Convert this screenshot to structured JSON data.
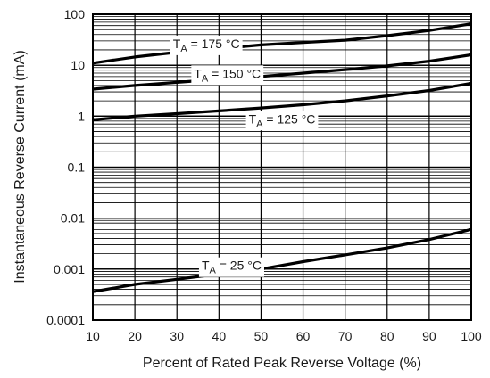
{
  "chart_data": {
    "type": "line",
    "title": "",
    "xlabel": "Percent of Rated Peak Reverse Voltage (%)",
    "ylabel": "Instantaneous Reverse Current (mA)",
    "xlim": [
      10,
      100
    ],
    "ylim": [
      0.0001,
      100
    ],
    "yscale": "log",
    "grid": true,
    "x_ticks": [
      10,
      20,
      30,
      40,
      50,
      60,
      70,
      80,
      90,
      100
    ],
    "x_tick_labels": [
      "10",
      "20",
      "30",
      "40",
      "50",
      "60",
      "70",
      "80",
      "90",
      "100"
    ],
    "y_ticks": [
      0.0001,
      0.001,
      0.01,
      0.1,
      1,
      10,
      100
    ],
    "y_tick_labels": [
      "0.0001",
      "0.001",
      "0.01",
      "0.1",
      "1",
      "10",
      "100"
    ],
    "series": [
      {
        "name": "TA = 175 °C",
        "label_main": "T",
        "label_sub": "A",
        "label_rest": " = 175 °C",
        "x": [
          10,
          20,
          30,
          40,
          50,
          60,
          70,
          80,
          90,
          100
        ],
        "y": [
          11,
          14.5,
          18,
          21,
          25,
          28,
          31,
          38,
          48,
          65
        ]
      },
      {
        "name": "TA = 150 °C",
        "label_main": "T",
        "label_sub": "A",
        "label_rest": " = 150 °C",
        "x": [
          10,
          20,
          30,
          40,
          50,
          60,
          70,
          80,
          90,
          100
        ],
        "y": [
          3.4,
          4.0,
          4.6,
          5.3,
          6.0,
          7.0,
          8.2,
          9.7,
          12,
          16
        ]
      },
      {
        "name": "TA = 125 °C",
        "label_main": "T",
        "label_sub": "A",
        "label_rest": " = 125 °C",
        "x": [
          10,
          20,
          30,
          40,
          50,
          60,
          70,
          80,
          90,
          100
        ],
        "y": [
          0.85,
          1.0,
          1.12,
          1.27,
          1.45,
          1.68,
          2.0,
          2.5,
          3.2,
          4.4
        ]
      },
      {
        "name": "TA = 25 °C",
        "label_main": "T",
        "label_sub": "A",
        "label_rest": " = 25 °C",
        "x": [
          10,
          20,
          30,
          40,
          50,
          60,
          70,
          80,
          90,
          100
        ],
        "y": [
          0.00036,
          0.0005,
          0.00063,
          0.0008,
          0.001,
          0.0014,
          0.0019,
          0.0026,
          0.0038,
          0.006
        ]
      }
    ]
  }
}
